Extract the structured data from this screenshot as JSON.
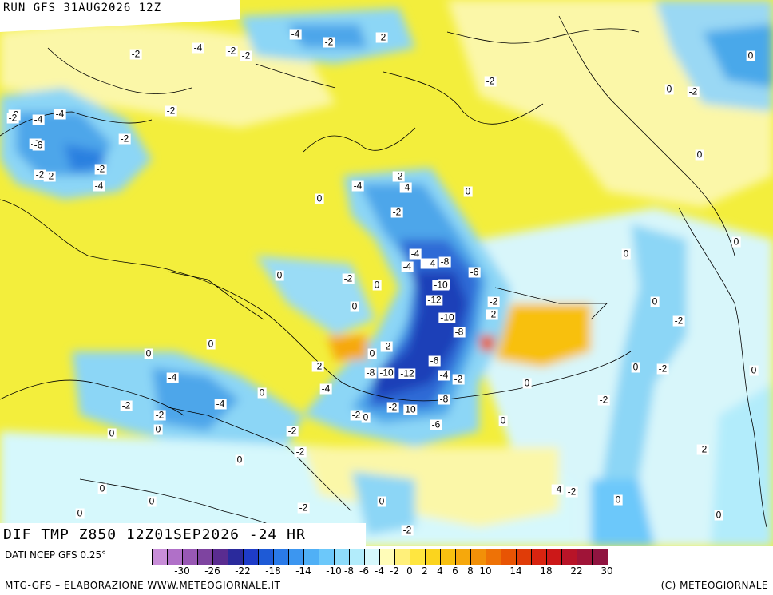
{
  "header": {
    "run_title": "RUN GFS 31AUG2026 12Z"
  },
  "map": {
    "title": "DIF TMP Z850 12Z01SEP2026 -24 HR",
    "contour_labels": [
      "-2",
      "-4",
      "-4",
      "-2",
      "-2",
      "-2",
      "-2",
      "-4",
      "-2",
      "-2",
      "-2",
      "-4",
      "-2",
      "-2",
      "-2",
      "-2",
      "-6",
      "-2",
      "-2",
      "-4",
      "-2",
      "-4",
      "-4",
      "0",
      "0",
      "-2",
      "-4",
      "0",
      "-6",
      "-4",
      "-6",
      "-8",
      "-6",
      "-2",
      "0",
      "-2",
      "0",
      "-10",
      "-2",
      "-12",
      "-4",
      "0",
      "-10",
      "-8",
      "0",
      "0",
      "-2",
      "0",
      "-6",
      "-2",
      "-8",
      "-10",
      "-12",
      "-4",
      "-2",
      "-4",
      "0",
      "-2",
      "-4",
      "-8",
      "-2",
      "-2",
      "0",
      "-6",
      "0",
      "-2",
      "10",
      "-4",
      "-2",
      "0",
      "0",
      "0",
      "-2",
      "0",
      "0",
      "0",
      "0",
      "-2",
      "0",
      "0",
      "0",
      "0",
      "-2",
      "0",
      "-2",
      "0",
      "-2",
      "-2",
      "-4",
      "-2",
      "0",
      "0",
      "-2",
      "-2",
      "0",
      "0"
    ]
  },
  "colorbar": {
    "source_label": "DATI NCEP GFS 0.25°",
    "tick_labels": [
      "-30",
      "-26",
      "-22",
      "-18",
      "-14",
      "-10",
      "-8",
      "-6",
      "-4",
      "-2",
      "0",
      "2",
      "4",
      "6",
      "8",
      "10",
      "14",
      "18",
      "22",
      "30"
    ],
    "colors": [
      "#c88ed8",
      "#b070c8",
      "#9858b4",
      "#7e44a0",
      "#5a2c90",
      "#2a2a9c",
      "#1e3cc8",
      "#1e5ad6",
      "#2a7ae8",
      "#3c96f0",
      "#50b0f6",
      "#6cc8fa",
      "#8edcfb",
      "#b2ecfb",
      "#d6f8fc",
      "#fffcb8",
      "#fff07a",
      "#ffe640",
      "#fbd41e",
      "#f8c010",
      "#f6a80c",
      "#f29008",
      "#ee7206",
      "#e85404",
      "#e03c08",
      "#d82410",
      "#cc1818",
      "#b81428",
      "#a01438",
      "#901440"
    ]
  },
  "footer": {
    "left": "MTG-GFS – ELABORAZIONE WWW.METEOGIORNALE.IT",
    "right": "(C) METEOGIORNALE"
  }
}
